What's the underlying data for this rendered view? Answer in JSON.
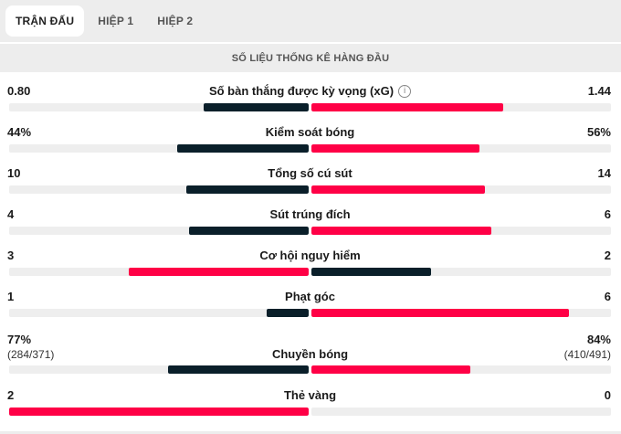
{
  "tabs": [
    {
      "label": "TRẬN ĐẤU",
      "active": true
    },
    {
      "label": "HIỆP 1",
      "active": false
    },
    {
      "label": "HIỆP 2",
      "active": false
    }
  ],
  "section_title": "SỐ LIỆU THỐNG KÊ HÀNG ĐẦU",
  "colors": {
    "leader": "#ff0046",
    "trailer": "#0a1f2a",
    "track": "#eeeeee"
  },
  "stats": [
    {
      "label": "Số bàn thắng được kỳ vọng (xG)",
      "home": "0.80",
      "away": "1.44",
      "info_icon": "info-icon",
      "home_fill": 0.35,
      "away_fill": 0.64,
      "leader": "away"
    },
    {
      "label": "Kiểm soát bóng",
      "home": "44%",
      "away": "56%",
      "home_fill": 0.44,
      "away_fill": 0.56,
      "leader": "away"
    },
    {
      "label": "Tổng số cú sút",
      "home": "10",
      "away": "14",
      "home_fill": 0.41,
      "away_fill": 0.58,
      "leader": "away"
    },
    {
      "label": "Sút trúng đích",
      "home": "4",
      "away": "6",
      "home_fill": 0.4,
      "away_fill": 0.6,
      "leader": "away"
    },
    {
      "label": "Cơ hội nguy hiểm",
      "home": "3",
      "away": "2",
      "home_fill": 0.6,
      "away_fill": 0.4,
      "leader": "home"
    },
    {
      "label": "Phạt góc",
      "home": "1",
      "away": "6",
      "home_fill": 0.14,
      "away_fill": 0.86,
      "leader": "away"
    },
    {
      "label": "Chuyền bóng",
      "home": "77%",
      "away": "84%",
      "home_sub": "(284/371)",
      "away_sub": "(410/491)",
      "home_fill": 0.47,
      "away_fill": 0.53,
      "leader": "away"
    },
    {
      "label": "Thẻ vàng",
      "home": "2",
      "away": "0",
      "home_fill": 1.0,
      "away_fill": 0,
      "leader": "home"
    }
  ]
}
